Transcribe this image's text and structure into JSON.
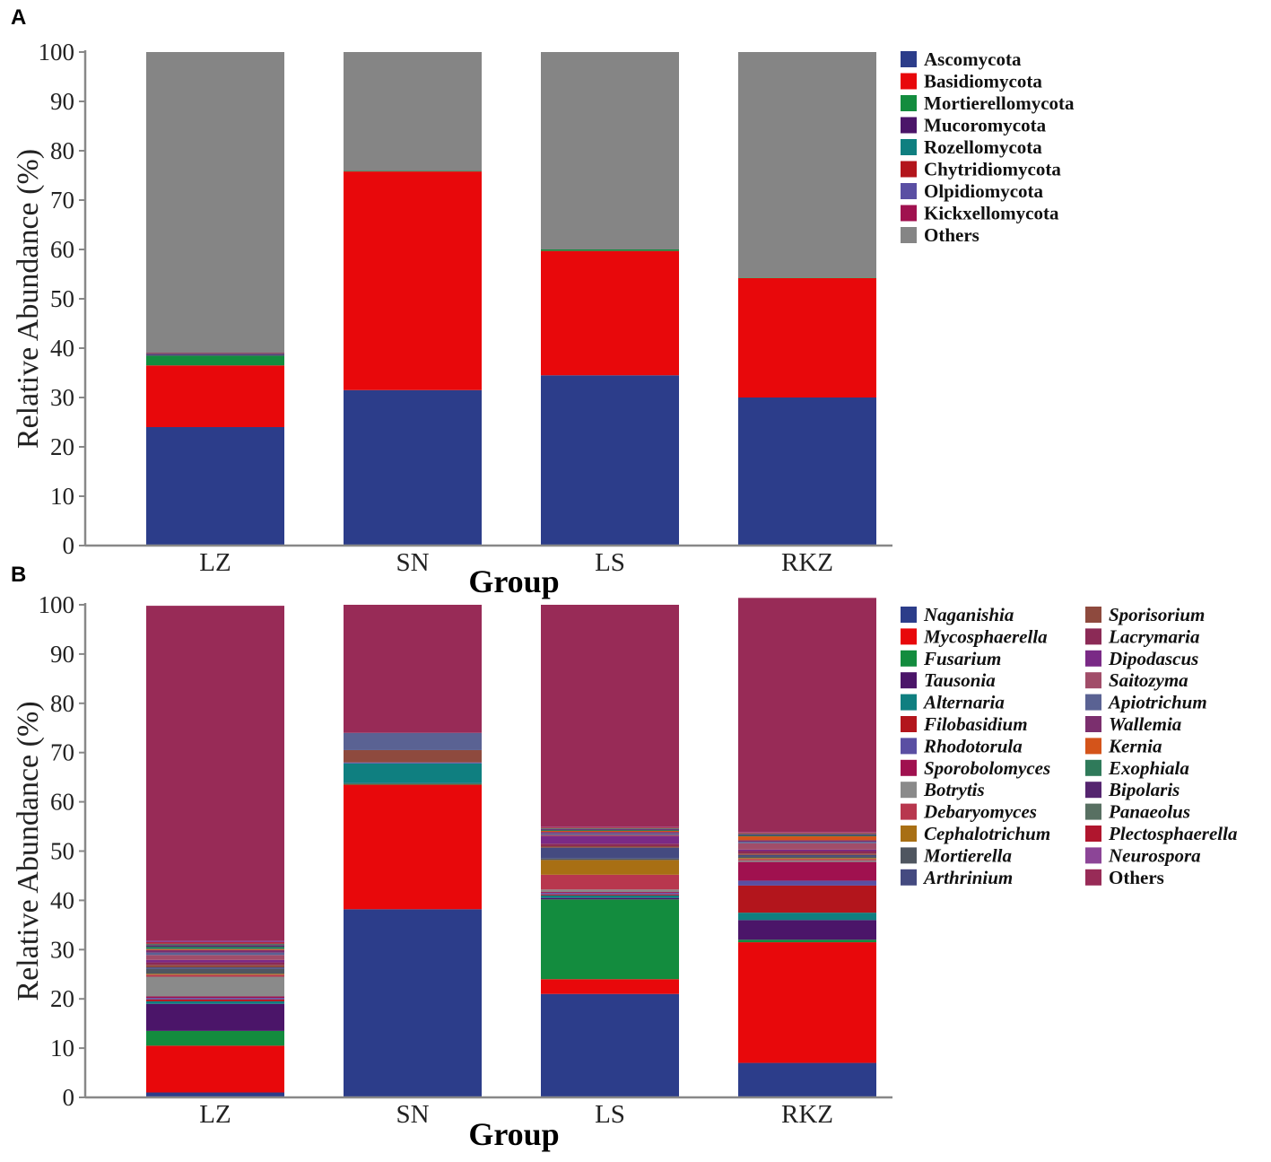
{
  "panels": [
    {
      "letter": "A",
      "legend_italic": false
    },
    {
      "letter": "B",
      "legend_italic": true
    }
  ],
  "chart_data": [
    {
      "type": "bar",
      "stacked": true,
      "panel": "A",
      "title": "",
      "xlabel": "Group",
      "ylabel": "Relative Abundance (%)",
      "ylim": [
        0,
        100
      ],
      "yticks": [
        0,
        10,
        20,
        30,
        40,
        50,
        60,
        70,
        80,
        90,
        100
      ],
      "categories": [
        "LZ",
        "SN",
        "LS",
        "RKZ"
      ],
      "legend_position": "right",
      "series": [
        {
          "name": "Ascomycota",
          "color": "#2c3d8a",
          "values": [
            24.0,
            31.5,
            34.5,
            30.0
          ]
        },
        {
          "name": "Basidiomycota",
          "color": "#e8080b",
          "values": [
            12.5,
            44.3,
            25.2,
            24.2
          ]
        },
        {
          "name": "Mortierellomycota",
          "color": "#138c3e",
          "values": [
            2.0,
            0.1,
            0.3,
            0.1
          ]
        },
        {
          "name": "Mucoromycota",
          "color": "#4b1569",
          "values": [
            0.2,
            0.0,
            0.0,
            0.0
          ]
        },
        {
          "name": "Rozellomycota",
          "color": "#0f7f80",
          "values": [
            0.1,
            0.0,
            0.0,
            0.0
          ]
        },
        {
          "name": "Chytridiomycota",
          "color": "#b3151c",
          "values": [
            0.1,
            0.0,
            0.0,
            0.0
          ]
        },
        {
          "name": "Olpidiomycota",
          "color": "#5a4fa3",
          "values": [
            0.05,
            0.0,
            0.0,
            0.0
          ]
        },
        {
          "name": "Kickxellomycota",
          "color": "#a0114f",
          "values": [
            0.05,
            0.0,
            0.0,
            0.0
          ]
        },
        {
          "name": "Others",
          "color": "#858585",
          "values": [
            61.0,
            24.1,
            40.0,
            45.7
          ]
        }
      ]
    },
    {
      "type": "bar",
      "stacked": true,
      "panel": "B",
      "title": "",
      "xlabel": "Group",
      "ylabel": "Relative Abundance (%)",
      "ylim": [
        0,
        100
      ],
      "yticks": [
        0,
        10,
        20,
        30,
        40,
        50,
        60,
        70,
        80,
        90,
        100
      ],
      "categories": [
        "LZ",
        "SN",
        "LS",
        "RKZ"
      ],
      "legend_position": "right",
      "series": [
        {
          "name": "Naganishia",
          "color": "#2c3d8a",
          "values": [
            1.0,
            38.2,
            21.0,
            7.0
          ]
        },
        {
          "name": "Mycosphaerella",
          "color": "#e8080b",
          "values": [
            9.5,
            25.3,
            3.0,
            24.5
          ]
        },
        {
          "name": "Fusarium",
          "color": "#138c3e",
          "values": [
            3.0,
            0.2,
            16.2,
            0.5
          ]
        },
        {
          "name": "Tausonia",
          "color": "#4b1569",
          "values": [
            5.5,
            0.1,
            0.3,
            4.0
          ]
        },
        {
          "name": "Alternaria",
          "color": "#0f7f80",
          "values": [
            0.5,
            4.0,
            0.5,
            1.5
          ]
        },
        {
          "name": "Filobasidium",
          "color": "#b3151c",
          "values": [
            0.4,
            0.0,
            0.2,
            5.5
          ]
        },
        {
          "name": "Rhodotorula",
          "color": "#5a4fa3",
          "values": [
            0.3,
            0.2,
            0.3,
            1.0
          ]
        },
        {
          "name": "Sporobolomyces",
          "color": "#a0114f",
          "values": [
            0.3,
            0.0,
            0.2,
            3.8
          ]
        },
        {
          "name": "Botrytis",
          "color": "#8a8a8a",
          "values": [
            4.0,
            0.0,
            0.5,
            0.3
          ]
        },
        {
          "name": "Debaryomyces",
          "color": "#b8374e",
          "values": [
            0.4,
            0.0,
            3.0,
            0.3
          ]
        },
        {
          "name": "Cephalotrichum",
          "color": "#a86f14",
          "values": [
            0.2,
            0.0,
            3.0,
            0.2
          ]
        },
        {
          "name": "Mortierella",
          "color": "#4f5660",
          "values": [
            1.0,
            0.0,
            0.3,
            0.3
          ]
        },
        {
          "name": "Arthrinium",
          "color": "#444a80",
          "values": [
            0.3,
            0.0,
            2.2,
            0.3
          ]
        },
        {
          "name": "Sporisorium",
          "color": "#8e4a3e",
          "values": [
            0.5,
            2.5,
            0.3,
            0.3
          ]
        },
        {
          "name": "Lacrymaria",
          "color": "#8b2a56",
          "values": [
            0.5,
            0.0,
            0.5,
            0.5
          ]
        },
        {
          "name": "Dipodascus",
          "color": "#7a2a86",
          "values": [
            0.5,
            0.0,
            1.5,
            0.3
          ]
        },
        {
          "name": "Saitozyma",
          "color": "#a14d69",
          "values": [
            1.0,
            0.0,
            0.3,
            1.3
          ]
        },
        {
          "name": "Apiotrichum",
          "color": "#5a6293",
          "values": [
            0.5,
            3.5,
            0.3,
            0.3
          ]
        },
        {
          "name": "Wallemia",
          "color": "#7b2f6e",
          "values": [
            0.5,
            0.0,
            0.3,
            0.3
          ]
        },
        {
          "name": "Kernia",
          "color": "#d4541a",
          "values": [
            0.2,
            0.0,
            0.2,
            0.8
          ]
        },
        {
          "name": "Exophiala",
          "color": "#2f7a5a",
          "values": [
            0.5,
            0.0,
            0.2,
            0.2
          ]
        },
        {
          "name": "Bipolaris",
          "color": "#55256f",
          "values": [
            0.3,
            0.0,
            0.2,
            0.2
          ]
        },
        {
          "name": "Panaeolus",
          "color": "#587062",
          "values": [
            0.3,
            0.0,
            0.2,
            0.2
          ]
        },
        {
          "name": "Plectosphaerella",
          "color": "#b0162e",
          "values": [
            0.3,
            0.0,
            0.2,
            0.2
          ]
        },
        {
          "name": "Neurospora",
          "color": "#8c4597",
          "values": [
            0.3,
            0.0,
            0.1,
            0.1
          ]
        },
        {
          "name": "Others",
          "color": "#982b57",
          "values": [
            68.0,
            26.0,
            45.0,
            47.5
          ]
        }
      ]
    }
  ]
}
